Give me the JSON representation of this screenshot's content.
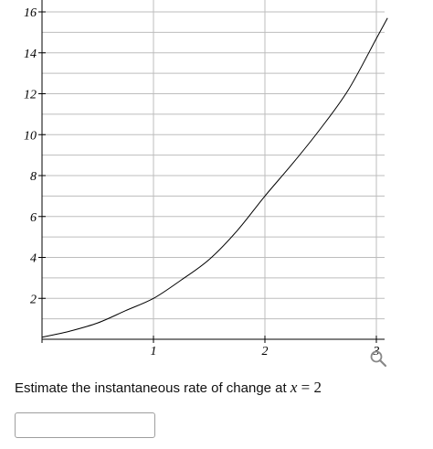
{
  "chart_data": {
    "type": "line",
    "title": "",
    "xlabel": "",
    "ylabel": "",
    "xlim": [
      -0.1,
      3.1
    ],
    "ylim": [
      -0.2,
      16.5
    ],
    "x_ticks": [
      "1",
      "2",
      "3"
    ],
    "y_ticks": [
      "2",
      "4",
      "6",
      "8",
      "10",
      "12",
      "14",
      "16"
    ],
    "x_grid_step": 1,
    "y_grid_step": 1,
    "grid": true,
    "series": [
      {
        "x": [
          0,
          0.25,
          0.5,
          0.75,
          1,
          1.25,
          1.5,
          1.75,
          2,
          2.25,
          2.5,
          2.75,
          3,
          3.1
        ],
        "y": [
          0.1,
          0.4,
          0.8,
          1.4,
          2.0,
          2.9,
          3.9,
          5.3,
          7.0,
          8.6,
          10.3,
          12.2,
          14.7,
          15.7
        ]
      }
    ]
  },
  "question": {
    "text": "Estimate the instantaneous rate of change at ",
    "var": "x",
    "op": " = ",
    "value": "2"
  },
  "answer": {
    "value": ""
  },
  "zoom": {
    "icon": "magnifier-icon"
  }
}
